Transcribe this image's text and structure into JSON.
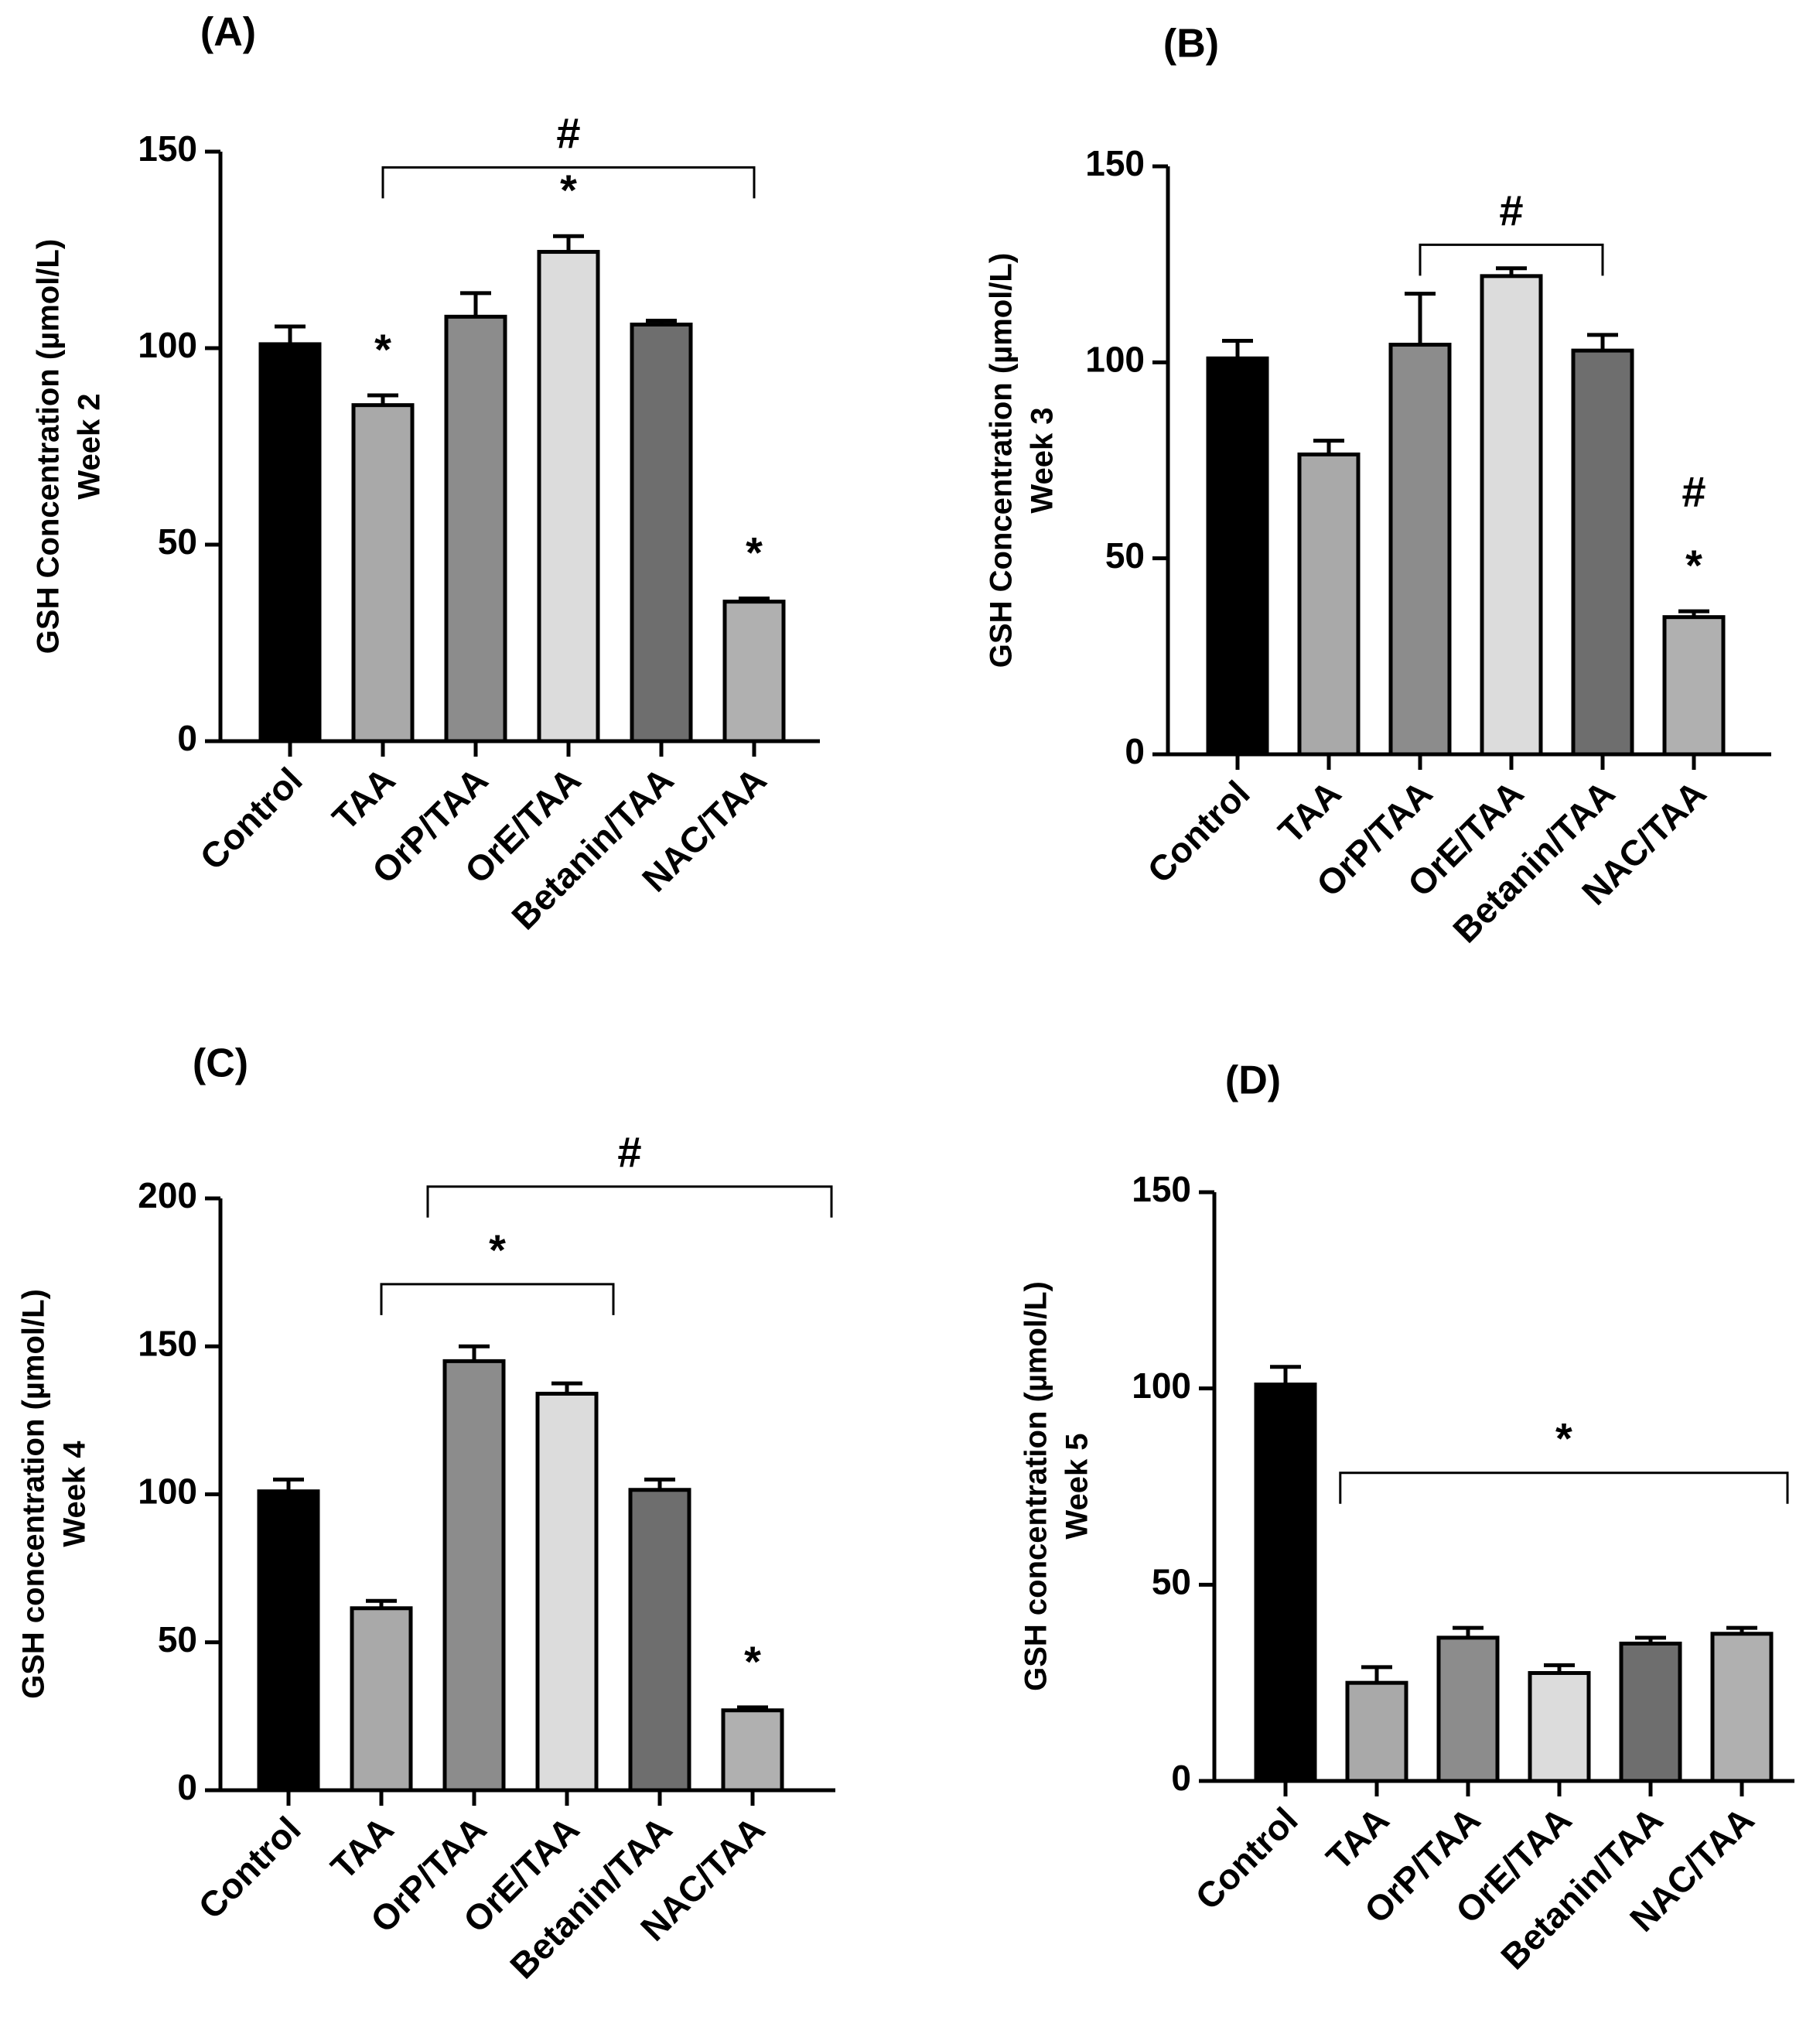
{
  "chart_data": [
    {
      "type": "bar",
      "panel_label": "(A)",
      "ylabel_line1": "GSH Concentration (µmol/L)",
      "ylabel_line2": "Week 2",
      "categories": [
        "Control",
        "TAA",
        "OrP/TAA",
        "OrE/TAA",
        "Betanin/TAA",
        "NAC/TAA"
      ],
      "values": [
        101,
        85.5,
        108,
        124.5,
        106,
        35.5
      ],
      "errors": [
        4.5,
        2.5,
        6,
        4,
        1,
        0.8
      ],
      "colors": [
        "#000000",
        "#a9a9a9",
        "#8c8c8c",
        "#dcdcdc",
        "#6e6e6e",
        "#b0b0b0"
      ],
      "ylim": [
        0,
        150
      ],
      "yticks": [
        0,
        50,
        100,
        150
      ],
      "ytick_labels": [
        "0",
        "50",
        "100",
        "150"
      ],
      "bar_annotations": [
        {
          "index": 1,
          "text": "*"
        },
        {
          "index": 3,
          "text": "*"
        },
        {
          "index": 5,
          "text": "*"
        }
      ],
      "brackets": [
        {
          "from": 1,
          "to": 5,
          "level": 146,
          "text": "#"
        }
      ]
    },
    {
      "type": "bar",
      "panel_label": "(B)",
      "ylabel_line1": "GSH Concentration (µmol/L)",
      "ylabel_line2": "Week 3",
      "categories": [
        "Control",
        "TAA",
        "OrP/TAA",
        "OrE/TAA",
        "Betanin/TAA",
        "NAC/TAA"
      ],
      "values": [
        101,
        76.5,
        104.5,
        122,
        103,
        35
      ],
      "errors": [
        4.5,
        3.5,
        13,
        2,
        4,
        1.5
      ],
      "colors": [
        "#000000",
        "#a9a9a9",
        "#8c8c8c",
        "#dcdcdc",
        "#6e6e6e",
        "#b0b0b0"
      ],
      "ylim": [
        0,
        150
      ],
      "yticks": [
        0,
        50,
        100,
        150
      ],
      "ytick_labels": [
        "0",
        "50",
        "100",
        "150"
      ],
      "bar_annotations": [
        {
          "index": 5,
          "text": "*"
        },
        {
          "index": 5,
          "text": "#",
          "offset": 1
        }
      ],
      "brackets": [
        {
          "from": 2,
          "to": 4,
          "level": 130,
          "text": "#"
        }
      ]
    },
    {
      "type": "bar",
      "panel_label": "(C)",
      "ylabel_line1": "GSH concentration (µmol/L)",
      "ylabel_line2": "Week 4",
      "categories": [
        "Control",
        "TAA",
        "OrP/TAA",
        "OrE/TAA",
        "Betanin/TAA",
        "NAC/TAA"
      ],
      "values": [
        101,
        61.5,
        145,
        134,
        101.5,
        27
      ],
      "errors": [
        4,
        2.5,
        5,
        3.5,
        3.5,
        1
      ],
      "colors": [
        "#000000",
        "#a9a9a9",
        "#8c8c8c",
        "#dcdcdc",
        "#6e6e6e",
        "#b0b0b0"
      ],
      "ylim": [
        0,
        200
      ],
      "yticks": [
        0,
        50,
        100,
        150,
        200
      ],
      "ytick_labels": [
        "0",
        "50",
        "100",
        "150",
        "200"
      ],
      "bar_annotations": [
        {
          "index": 5,
          "text": "*"
        }
      ],
      "brackets": [
        {
          "from": 1.5,
          "to": 5.85,
          "level": 204,
          "text": "#"
        },
        {
          "from": 1,
          "to": 3.5,
          "level": 171,
          "text": "*"
        }
      ]
    },
    {
      "type": "bar",
      "panel_label": "(D)",
      "ylabel_line1": "GSH concentration (µmol/L)",
      "ylabel_line2": "Week 5",
      "categories": [
        "Control",
        "TAA",
        "OrP/TAA",
        "OrE/TAA",
        "Betanin/TAA",
        "NAC/TAA"
      ],
      "values": [
        101,
        25,
        36.5,
        27.5,
        35,
        37.5
      ],
      "errors": [
        4.5,
        4,
        2.5,
        2,
        1.5,
        1.5
      ],
      "colors": [
        "#000000",
        "#a9a9a9",
        "#8c8c8c",
        "#dcdcdc",
        "#6e6e6e",
        "#b0b0b0"
      ],
      "ylim": [
        0,
        150
      ],
      "yticks": [
        0,
        50,
        100,
        150
      ],
      "ytick_labels": [
        "0",
        "50",
        "100",
        "150"
      ],
      "bar_annotations": [],
      "brackets": [
        {
          "from": 0.6,
          "to": 5.5,
          "level": 78.5,
          "text": "*"
        }
      ]
    }
  ]
}
